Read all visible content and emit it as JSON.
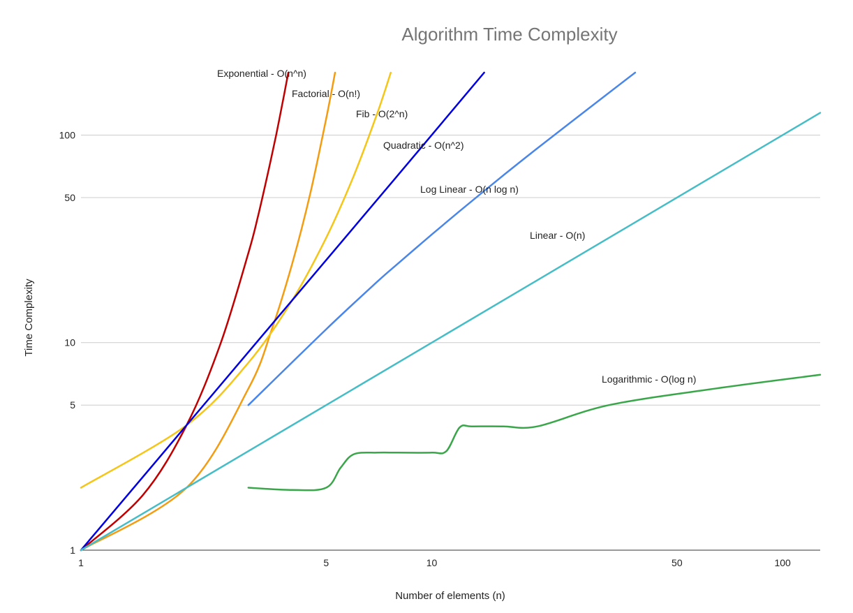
{
  "chart_data": {
    "type": "line",
    "title": "Algorithm Time Complexity",
    "xlabel": "Number of elements (n)",
    "ylabel": "Time Complexity",
    "x_scale": "log",
    "y_scale": "log",
    "xlim": [
      1,
      128
    ],
    "ylim": [
      1,
      200
    ],
    "x_ticks": [
      1,
      5,
      10,
      50,
      100
    ],
    "y_ticks": [
      1,
      5,
      10,
      50,
      100
    ],
    "grid": "horizontal",
    "legend": "none",
    "series": [
      {
        "name": "Exponential - O(n^n)",
        "color": "#c00000",
        "points": [
          [
            1,
            1
          ],
          [
            1.5,
            1.84
          ],
          [
            2,
            4
          ],
          [
            2.5,
            9.9
          ],
          [
            3,
            27
          ],
          [
            3.2,
            41
          ],
          [
            3.4,
            64
          ],
          [
            3.6,
            100
          ],
          [
            3.8,
            159
          ],
          [
            3.9,
            200
          ]
        ]
      },
      {
        "name": "Factorial - O(n!)",
        "color": "#f39c12",
        "points": [
          [
            1,
            1
          ],
          [
            2,
            2
          ],
          [
            3,
            6
          ],
          [
            3.5,
            11.6
          ],
          [
            4,
            24
          ],
          [
            4.5,
            52
          ],
          [
            5,
            120
          ],
          [
            5.3,
            200
          ]
        ]
      },
      {
        "name": "Fib - O(2^n)",
        "color": "#f5c518",
        "points": [
          [
            1,
            2
          ],
          [
            2,
            4
          ],
          [
            3,
            8
          ],
          [
            4,
            16
          ],
          [
            5,
            32
          ],
          [
            6,
            64
          ],
          [
            7,
            128
          ],
          [
            7.64,
            200
          ]
        ]
      },
      {
        "name": "Quadratic - O(n^2)",
        "color": "#0000e0",
        "points": [
          [
            1,
            1
          ],
          [
            2,
            4
          ],
          [
            4,
            16
          ],
          [
            8,
            64
          ],
          [
            14.1,
            200
          ]
        ]
      },
      {
        "name": "Log Linear - O(n log n)",
        "color": "#4a86e8",
        "points": [
          [
            3,
            5
          ],
          [
            5,
            11.6
          ],
          [
            7,
            19.7
          ],
          [
            8,
            24
          ],
          [
            9,
            28.5
          ],
          [
            10,
            33.2
          ],
          [
            12,
            43
          ],
          [
            16,
            64
          ],
          [
            20,
            86.4
          ],
          [
            30,
            147
          ],
          [
            38,
            200
          ]
        ]
      },
      {
        "name": "Linear - O(n)",
        "color": "#46bdc6",
        "points": [
          [
            1,
            1
          ],
          [
            128,
            128
          ]
        ]
      },
      {
        "name": "Logarithmic - O(log n)",
        "color": "#3aa64a",
        "points": [
          [
            3,
            2
          ],
          [
            4,
            1.95
          ],
          [
            5,
            2
          ],
          [
            5.5,
            2.5
          ],
          [
            6,
            2.9
          ],
          [
            7,
            2.95
          ],
          [
            8,
            2.95
          ],
          [
            10,
            2.95
          ],
          [
            11,
            3
          ],
          [
            12,
            3.9
          ],
          [
            13,
            3.95
          ],
          [
            16,
            3.95
          ],
          [
            20,
            3.95
          ],
          [
            32,
            5
          ],
          [
            64,
            6
          ],
          [
            128,
            7
          ]
        ]
      }
    ]
  }
}
